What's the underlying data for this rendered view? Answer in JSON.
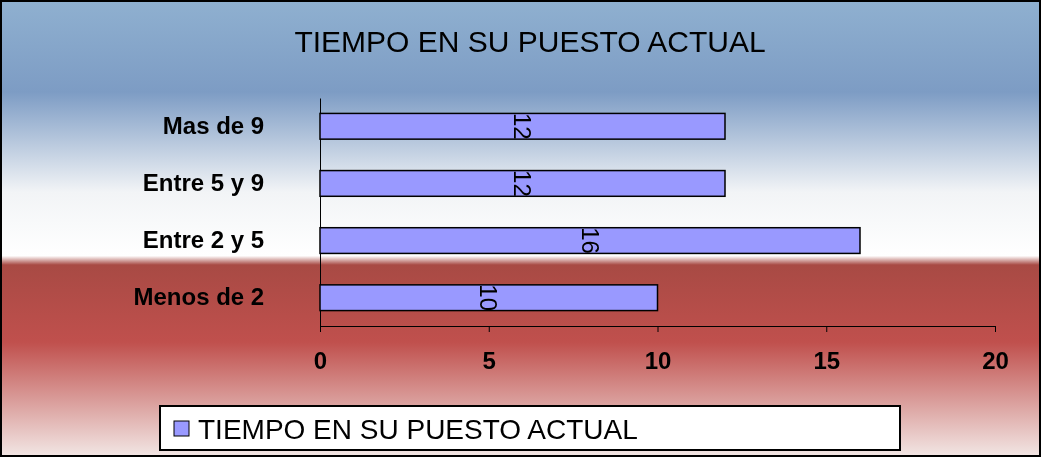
{
  "chart_data": {
    "type": "bar",
    "orientation": "horizontal",
    "title": "TIEMPO EN SU PUESTO ACTUAL",
    "categories": [
      "Mas de 9",
      "Entre 5 y 9",
      "Entre 2 y 5",
      "Menos de 2"
    ],
    "series": [
      {
        "name": "TIEMPO EN SU PUESTO ACTUAL",
        "color": "#9999ff",
        "values": [
          12,
          12,
          16,
          10
        ]
      }
    ],
    "xlim": [
      0,
      20
    ],
    "xticks": [
      0,
      5,
      10,
      15,
      20
    ],
    "data_labels": true,
    "legend": "bottom"
  }
}
